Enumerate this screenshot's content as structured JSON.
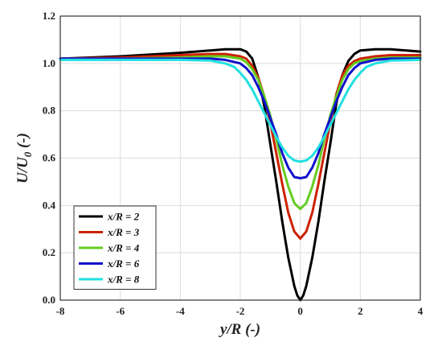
{
  "chart_data": {
    "type": "line",
    "title": "",
    "xlabel": "y/R (-)",
    "ylabel": "U/U",
    "ylabel_sub": "0",
    "ylabel_suffix": " (-)",
    "xlim": [
      -8,
      4
    ],
    "ylim": [
      0,
      1.2
    ],
    "xticks": [
      -8,
      -6,
      -4,
      -2,
      0,
      2,
      4
    ],
    "yticks": [
      0.0,
      0.2,
      0.4,
      0.6,
      0.8,
      1.0,
      1.2
    ],
    "xtick_labels": [
      "-8",
      "-6",
      "-4",
      "-2",
      "0",
      "2",
      "4"
    ],
    "ytick_labels": [
      "0.0",
      "0.2",
      "0.4",
      "0.6",
      "0.8",
      "1.0",
      "1.2"
    ],
    "grid": true,
    "legend_position": "bottom-left",
    "series": [
      {
        "name": "x/R = 2",
        "color": "#000000",
        "x": [
          -8,
          -6,
          -4,
          -3,
          -2.5,
          -2,
          -1.8,
          -1.6,
          -1.4,
          -1.2,
          -1.0,
          -0.8,
          -0.6,
          -0.4,
          -0.2,
          -0.1,
          0,
          0.1,
          0.2,
          0.4,
          0.6,
          0.8,
          1.0,
          1.2,
          1.4,
          1.6,
          1.8,
          2.0,
          2.5,
          3,
          4
        ],
        "y": [
          1.02,
          1.03,
          1.045,
          1.055,
          1.06,
          1.06,
          1.05,
          1.02,
          0.94,
          0.82,
          0.66,
          0.5,
          0.33,
          0.18,
          0.06,
          0.02,
          0.0,
          0.02,
          0.06,
          0.18,
          0.33,
          0.5,
          0.66,
          0.83,
          0.95,
          1.01,
          1.04,
          1.055,
          1.06,
          1.06,
          1.05
        ]
      },
      {
        "name": "x/R = 3",
        "color": "#cc2200",
        "x": [
          -8,
          -6,
          -4,
          -3,
          -2.5,
          -2,
          -1.8,
          -1.6,
          -1.4,
          -1.2,
          -1.0,
          -0.8,
          -0.6,
          -0.4,
          -0.2,
          0,
          0.2,
          0.4,
          0.6,
          0.8,
          1.0,
          1.2,
          1.4,
          1.6,
          1.8,
          2.0,
          2.5,
          3,
          4
        ],
        "y": [
          1.02,
          1.025,
          1.035,
          1.04,
          1.04,
          1.03,
          1.02,
          0.99,
          0.94,
          0.86,
          0.75,
          0.62,
          0.49,
          0.37,
          0.29,
          0.26,
          0.29,
          0.37,
          0.49,
          0.62,
          0.75,
          0.87,
          0.95,
          0.99,
          1.01,
          1.02,
          1.03,
          1.035,
          1.035
        ]
      },
      {
        "name": "x/R = 4",
        "color": "#66cc22",
        "x": [
          -8,
          -6,
          -4,
          -3,
          -2.5,
          -2,
          -1.8,
          -1.6,
          -1.4,
          -1.2,
          -1.0,
          -0.8,
          -0.6,
          -0.4,
          -0.2,
          0,
          0.2,
          0.4,
          0.6,
          0.8,
          1.0,
          1.2,
          1.4,
          1.6,
          1.8,
          2.0,
          2.5,
          3,
          4
        ],
        "y": [
          1.02,
          1.02,
          1.025,
          1.03,
          1.03,
          1.02,
          1.005,
          0.975,
          0.93,
          0.86,
          0.78,
          0.68,
          0.57,
          0.48,
          0.41,
          0.385,
          0.41,
          0.48,
          0.57,
          0.68,
          0.78,
          0.86,
          0.93,
          0.975,
          1.0,
          1.01,
          1.02,
          1.025,
          1.025
        ]
      },
      {
        "name": "x/R = 6",
        "color": "#1111cc",
        "x": [
          -8,
          -6,
          -4,
          -3,
          -2.5,
          -2,
          -1.8,
          -1.6,
          -1.4,
          -1.2,
          -1.0,
          -0.8,
          -0.6,
          -0.4,
          -0.2,
          0,
          0.2,
          0.4,
          0.6,
          0.8,
          1.0,
          1.2,
          1.4,
          1.6,
          1.8,
          2.0,
          2.5,
          3,
          4
        ],
        "y": [
          1.02,
          1.02,
          1.02,
          1.02,
          1.015,
          1.0,
          0.98,
          0.95,
          0.9,
          0.84,
          0.77,
          0.7,
          0.62,
          0.56,
          0.52,
          0.515,
          0.52,
          0.56,
          0.62,
          0.7,
          0.77,
          0.84,
          0.9,
          0.95,
          0.98,
          1.0,
          1.015,
          1.02,
          1.02
        ]
      },
      {
        "name": "x/R = 8",
        "color": "#22e0e0",
        "x": [
          -8,
          -6,
          -4,
          -3,
          -2.5,
          -2.2,
          -2.0,
          -1.8,
          -1.6,
          -1.4,
          -1.2,
          -1.0,
          -0.8,
          -0.6,
          -0.4,
          -0.2,
          0,
          0.2,
          0.4,
          0.6,
          0.8,
          1.0,
          1.2,
          1.4,
          1.6,
          1.8,
          2.0,
          2.2,
          2.5,
          3,
          4
        ],
        "y": [
          1.015,
          1.015,
          1.015,
          1.012,
          1.0,
          0.985,
          0.96,
          0.93,
          0.89,
          0.84,
          0.79,
          0.74,
          0.69,
          0.645,
          0.61,
          0.59,
          0.585,
          0.59,
          0.61,
          0.645,
          0.69,
          0.74,
          0.79,
          0.84,
          0.89,
          0.93,
          0.96,
          0.985,
          1.0,
          1.012,
          1.015
        ]
      }
    ]
  }
}
